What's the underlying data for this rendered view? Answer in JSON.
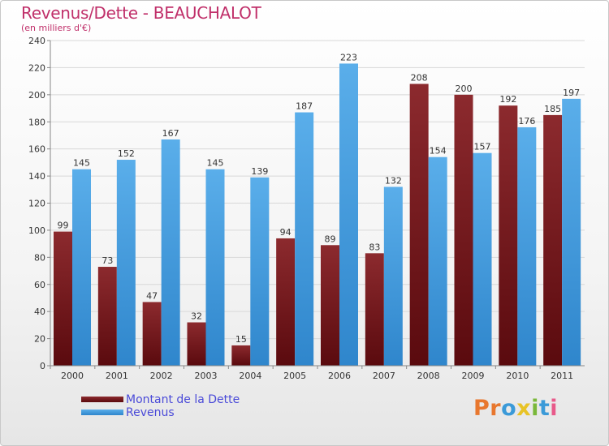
{
  "title": "Revenus/Dette - BEAUCHALOT",
  "subtitle": "(en milliers d'€)",
  "colors": {
    "debt": "#7a1a1e",
    "revenue": "#4ea6e6",
    "title": "#c0306a",
    "legend_text": "#4a4ad8"
  },
  "legend": {
    "debt_label": "Montant de la Dette",
    "revenue_label": "Revenus"
  },
  "logo": {
    "letters": [
      "P",
      "r",
      "o",
      "x",
      "i",
      "t",
      "i"
    ],
    "colors": [
      "#e8772e",
      "#e8772e",
      "#3b9ad8",
      "#e8c326",
      "#7ab83a",
      "#3b9ad8",
      "#e85a8a"
    ]
  },
  "chart_data": {
    "type": "bar",
    "title": "Revenus/Dette - BEAUCHALOT",
    "subtitle": "(en milliers d'€)",
    "categories": [
      "2000",
      "2001",
      "2002",
      "2003",
      "2004",
      "2005",
      "2006",
      "2007",
      "2008",
      "2009",
      "2010",
      "2011"
    ],
    "series": [
      {
        "name": "Montant de la Dette",
        "values": [
          99,
          73,
          47,
          32,
          15,
          94,
          89,
          83,
          208,
          200,
          192,
          185
        ]
      },
      {
        "name": "Revenus",
        "values": [
          145,
          152,
          167,
          145,
          139,
          187,
          223,
          132,
          154,
          157,
          176,
          197
        ]
      }
    ],
    "ylim": [
      0,
      240
    ],
    "yticks": [
      0,
      20,
      40,
      60,
      80,
      100,
      120,
      140,
      160,
      180,
      200,
      220,
      240
    ],
    "grid": true,
    "legend_position": "bottom-left",
    "data_labels": true
  }
}
